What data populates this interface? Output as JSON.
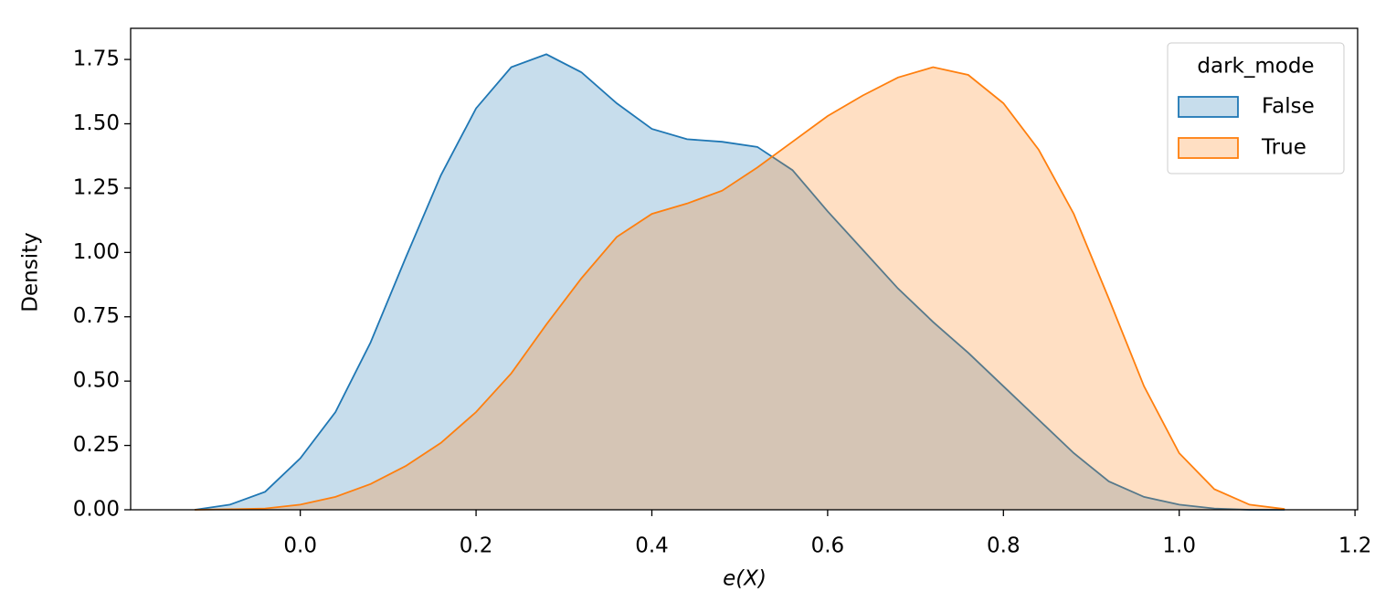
{
  "chart_data": {
    "type": "kde",
    "xlabel": "e(X)",
    "ylabel": "Density",
    "legend_title": "dark_mode",
    "legend_loc": "upper right",
    "x": [
      -0.12,
      -0.08,
      -0.04,
      0,
      0.04,
      0.08,
      0.12,
      0.16,
      0.2,
      0.24,
      0.28,
      0.32,
      0.36,
      0.4,
      0.44,
      0.48,
      0.52,
      0.56,
      0.6,
      0.64,
      0.68,
      0.72,
      0.76,
      0.8,
      0.84,
      0.88,
      0.92,
      0.96,
      1.0,
      1.04,
      1.08,
      1.12
    ],
    "series": [
      {
        "name": "False",
        "color": "#1f77b4",
        "values": [
          0.0,
          0.02,
          0.07,
          0.2,
          0.38,
          0.65,
          0.98,
          1.3,
          1.56,
          1.72,
          1.77,
          1.7,
          1.58,
          1.48,
          1.44,
          1.43,
          1.41,
          1.32,
          1.16,
          1.01,
          0.86,
          0.73,
          0.61,
          0.48,
          0.35,
          0.22,
          0.11,
          0.05,
          0.02,
          0.005,
          0.0,
          0.0
        ]
      },
      {
        "name": "True",
        "color": "#ff7f0e",
        "values": [
          0.0,
          0.002,
          0.005,
          0.02,
          0.05,
          0.1,
          0.17,
          0.26,
          0.38,
          0.53,
          0.72,
          0.9,
          1.06,
          1.15,
          1.19,
          1.24,
          1.33,
          1.43,
          1.53,
          1.61,
          1.68,
          1.72,
          1.69,
          1.58,
          1.4,
          1.15,
          0.82,
          0.48,
          0.22,
          0.08,
          0.02,
          0.003
        ]
      }
    ],
    "xlim": [
      -0.193,
      1.203
    ],
    "ylim": [
      0,
      1.871
    ],
    "xticks": [
      {
        "value": 0,
        "label": "0.0"
      },
      {
        "value": 0.2,
        "label": "0.2"
      },
      {
        "value": 0.4,
        "label": "0.4"
      },
      {
        "value": 0.6,
        "label": "0.6"
      },
      {
        "value": 0.8,
        "label": "0.8"
      },
      {
        "value": 1.0,
        "label": "1.0"
      },
      {
        "value": 1.2,
        "label": "1.2"
      }
    ],
    "yticks": [
      {
        "value": 0,
        "label": "0.00"
      },
      {
        "value": 0.25,
        "label": "0.25"
      },
      {
        "value": 0.5,
        "label": "0.50"
      },
      {
        "value": 0.75,
        "label": "0.75"
      },
      {
        "value": 1.0,
        "label": "1.00"
      },
      {
        "value": 1.25,
        "label": "1.25"
      },
      {
        "value": 1.5,
        "label": "1.50"
      },
      {
        "value": 1.75,
        "label": "1.75"
      }
    ]
  }
}
